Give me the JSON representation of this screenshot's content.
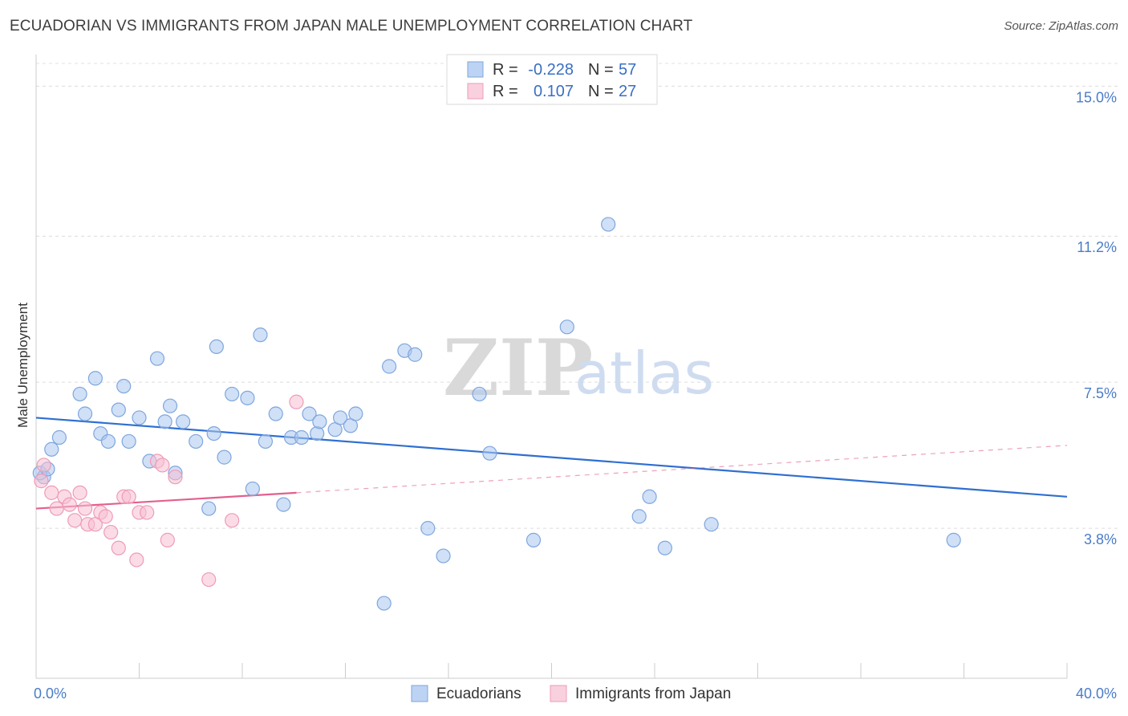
{
  "chart_data": {
    "type": "scatter",
    "title": "ECUADORIAN VS IMMIGRANTS FROM JAPAN MALE UNEMPLOYMENT CORRELATION CHART",
    "source": "Source: ZipAtlas.com",
    "ylabel": "Male Unemployment",
    "xlim": [
      0,
      40
    ],
    "ylim": [
      0,
      15.8
    ],
    "y_ticks": [
      {
        "value": 15.0,
        "label": "15.0%"
      },
      {
        "value": 11.2,
        "label": "11.2%"
      },
      {
        "value": 7.5,
        "label": "7.5%"
      },
      {
        "value": 3.8,
        "label": "3.8%"
      }
    ],
    "x_tick_labels": {
      "min": "0.0%",
      "max": "40.0%"
    },
    "watermark": {
      "part1": "ZIP",
      "part2": "atlas"
    },
    "legend": {
      "r_label": "R =",
      "n_label": "N =",
      "entries": [
        {
          "r": "-0.228",
          "n": "57"
        },
        {
          "r": "0.107",
          "n": "27"
        }
      ]
    },
    "series": [
      {
        "name": "Ecuadorians",
        "color": "#a9c6ef",
        "stroke": "#7fa6de",
        "trend_color": "#2f6fd1",
        "trend": {
          "x0": 0,
          "y0": 6.6,
          "x1": 40,
          "y1": 4.6
        },
        "points": [
          [
            0.3,
            5.1
          ],
          [
            0.6,
            5.8
          ],
          [
            0.9,
            6.1
          ],
          [
            1.7,
            7.2
          ],
          [
            1.9,
            6.7
          ],
          [
            2.3,
            7.6
          ],
          [
            2.5,
            6.2
          ],
          [
            2.8,
            6.0
          ],
          [
            3.2,
            6.8
          ],
          [
            3.4,
            7.4
          ],
          [
            3.6,
            6.0
          ],
          [
            4.0,
            6.6
          ],
          [
            4.4,
            5.5
          ],
          [
            4.7,
            8.1
          ],
          [
            5.0,
            6.5
          ],
          [
            5.2,
            6.9
          ],
          [
            5.4,
            5.2
          ],
          [
            5.7,
            6.5
          ],
          [
            6.2,
            6.0
          ],
          [
            6.7,
            4.3
          ],
          [
            6.9,
            6.2
          ],
          [
            7.0,
            8.4
          ],
          [
            7.3,
            5.6
          ],
          [
            7.6,
            7.2
          ],
          [
            8.2,
            7.1
          ],
          [
            8.4,
            4.8
          ],
          [
            8.9,
            6.0
          ],
          [
            8.7,
            8.7
          ],
          [
            9.3,
            6.7
          ],
          [
            9.9,
            6.1
          ],
          [
            10.3,
            6.1
          ],
          [
            10.6,
            6.7
          ],
          [
            10.9,
            6.2
          ],
          [
            11.0,
            6.5
          ],
          [
            11.6,
            6.3
          ],
          [
            11.8,
            6.6
          ],
          [
            12.2,
            6.4
          ],
          [
            12.4,
            6.7
          ],
          [
            9.6,
            4.4
          ],
          [
            13.5,
            1.9
          ],
          [
            13.7,
            7.9
          ],
          [
            14.3,
            8.3
          ],
          [
            14.7,
            8.2
          ],
          [
            15.2,
            3.8
          ],
          [
            15.8,
            3.1
          ],
          [
            17.2,
            7.2
          ],
          [
            17.6,
            5.7
          ],
          [
            19.3,
            3.5
          ],
          [
            20.6,
            8.9
          ],
          [
            22.2,
            11.5
          ],
          [
            23.4,
            4.1
          ],
          [
            23.8,
            4.6
          ],
          [
            24.4,
            3.3
          ],
          [
            26.2,
            3.9
          ],
          [
            35.6,
            3.5
          ],
          [
            0.15,
            5.2
          ],
          [
            0.45,
            5.3
          ]
        ]
      },
      {
        "name": "Immigrants from Japan",
        "color": "#f7c0d2",
        "stroke": "#ee9bb8",
        "trend_color": "#e2608e",
        "trend": {
          "x0": 0,
          "y0": 4.3,
          "x1": 10.1,
          "y1": 4.7
        },
        "trend_ext": {
          "x0": 10.1,
          "y0": 4.7,
          "x1": 40,
          "y1": 5.9
        },
        "points": [
          [
            0.3,
            5.4
          ],
          [
            0.6,
            4.7
          ],
          [
            0.8,
            4.3
          ],
          [
            1.1,
            4.6
          ],
          [
            1.3,
            4.4
          ],
          [
            1.5,
            4.0
          ],
          [
            1.7,
            4.7
          ],
          [
            1.9,
            4.3
          ],
          [
            2.0,
            3.9
          ],
          [
            2.3,
            3.9
          ],
          [
            2.5,
            4.2
          ],
          [
            2.7,
            4.1
          ],
          [
            2.9,
            3.7
          ],
          [
            3.2,
            3.3
          ],
          [
            3.4,
            4.6
          ],
          [
            3.6,
            4.6
          ],
          [
            3.9,
            3.0
          ],
          [
            4.0,
            4.2
          ],
          [
            4.3,
            4.2
          ],
          [
            4.7,
            5.5
          ],
          [
            4.9,
            5.4
          ],
          [
            5.1,
            3.5
          ],
          [
            5.4,
            5.1
          ],
          [
            6.7,
            2.5
          ],
          [
            7.6,
            4.0
          ],
          [
            10.1,
            7.0
          ],
          [
            0.2,
            5.0
          ]
        ]
      }
    ]
  }
}
